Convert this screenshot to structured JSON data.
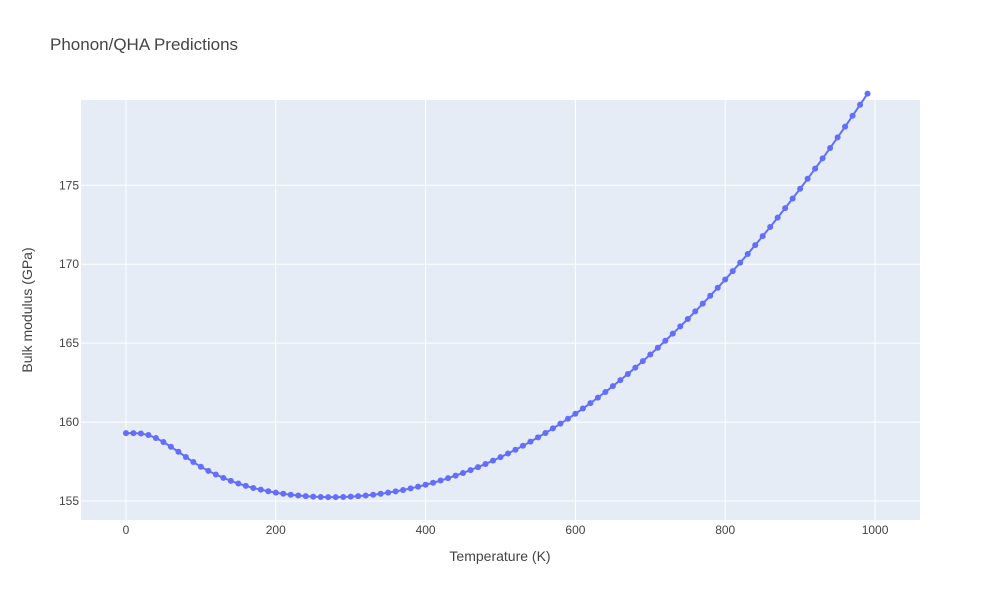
{
  "chart_data": {
    "type": "line",
    "title": "Phonon/QHA Predictions",
    "xlabel": "Temperature (K)",
    "ylabel": "Bulk modulus (GPa)",
    "xlim": [
      -60,
      1060
    ],
    "ylim": [
      153.8,
      180.4
    ],
    "xticks": [
      0,
      200,
      400,
      600,
      800,
      1000
    ],
    "yticks": [
      155,
      160,
      165,
      170,
      175
    ],
    "grid": true,
    "legend": "none",
    "colors": {
      "plot_bg": "#e5ecf6",
      "series": "#636efa",
      "grid": "#ffffff",
      "text": "#444444"
    },
    "series": [
      {
        "mode": "lines+markers",
        "x": [
          0,
          10,
          20,
          30,
          40,
          50,
          60,
          70,
          80,
          90,
          100,
          110,
          120,
          130,
          140,
          150,
          160,
          170,
          180,
          190,
          200,
          210,
          220,
          230,
          240,
          250,
          260,
          270,
          280,
          290,
          300,
          310,
          320,
          330,
          340,
          350,
          360,
          370,
          380,
          390,
          400,
          410,
          420,
          430,
          440,
          450,
          460,
          470,
          480,
          490,
          500,
          510,
          520,
          530,
          540,
          550,
          560,
          570,
          580,
          590,
          600,
          610,
          620,
          630,
          640,
          650,
          660,
          670,
          680,
          690,
          700,
          710,
          720,
          730,
          740,
          750,
          760,
          770,
          780,
          790,
          800,
          810,
          820,
          830,
          840,
          850,
          860,
          870,
          880,
          890,
          900,
          910,
          920,
          930,
          940,
          950,
          960,
          970,
          980,
          990
        ],
        "y": [
          159.3,
          159.3,
          159.28,
          159.18,
          158.99,
          158.74,
          158.44,
          158.12,
          157.79,
          157.47,
          157.17,
          156.91,
          156.68,
          156.47,
          156.28,
          156.11,
          155.96,
          155.83,
          155.72,
          155.62,
          155.53,
          155.46,
          155.4,
          155.35,
          155.31,
          155.28,
          155.26,
          155.25,
          155.25,
          155.26,
          155.28,
          155.31,
          155.35,
          155.4,
          155.46,
          155.53,
          155.61,
          155.7,
          155.8,
          155.91,
          156.03,
          156.16,
          156.3,
          156.45,
          156.61,
          156.78,
          156.96,
          157.15,
          157.35,
          157.56,
          157.78,
          158.01,
          158.25,
          158.5,
          158.76,
          159.03,
          159.31,
          159.6,
          159.9,
          160.21,
          160.53,
          160.86,
          161.2,
          161.55,
          161.91,
          162.28,
          162.66,
          163.05,
          163.45,
          163.86,
          164.28,
          164.71,
          165.15,
          165.6,
          166.06,
          166.53,
          167.01,
          167.5,
          168.0,
          168.51,
          169.03,
          169.56,
          170.1,
          170.65,
          171.21,
          171.78,
          172.36,
          172.95,
          173.55,
          174.16,
          174.78,
          175.41,
          176.05,
          176.7,
          177.36,
          178.03,
          178.71,
          179.4,
          180.1,
          180.8
        ]
      }
    ]
  }
}
